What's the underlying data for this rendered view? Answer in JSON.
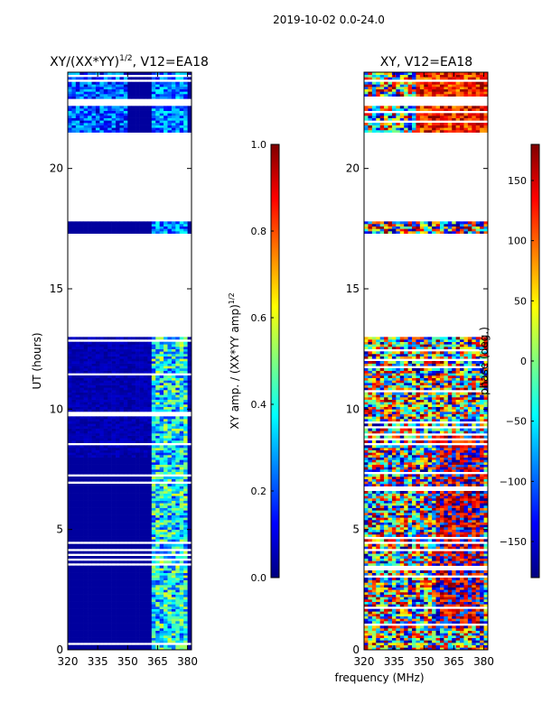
{
  "figure": {
    "suptitle": "2019-10-02 0.0-24.0"
  },
  "colors": {
    "jet": [
      "#00007f",
      "#0000ff",
      "#007fff",
      "#00ffff",
      "#7fff7f",
      "#ffff00",
      "#ff7f00",
      "#ff0000",
      "#7f0000"
    ]
  },
  "chart_data": [
    {
      "type": "heatmap",
      "title_main": "XY/(XX*YY)",
      "title_sup": "1/2",
      "title_tail": ", V12=EA18",
      "xlabel": "frequency (MHz)",
      "ylabel": "UT (hours)",
      "xlim": [
        320,
        382
      ],
      "ylim": [
        0,
        24
      ],
      "xticks": [
        320,
        335,
        350,
        365,
        380
      ],
      "yticks": [
        0,
        5,
        10,
        15,
        20
      ],
      "colorbar": {
        "label_main": "XY amp. / (XX*YY amp)",
        "label_sup": "1/2",
        "range": [
          0.0,
          1.0
        ],
        "ticks": [
          "0.0",
          "0.2",
          "0.4",
          "0.6",
          "0.8",
          "1.0"
        ]
      },
      "data_gaps_hours": [
        [
          13.0,
          17.3
        ],
        [
          17.8,
          21.5
        ],
        [
          22.6,
          22.9
        ],
        [
          23.6,
          23.7
        ]
      ],
      "note": "Mostly low amplitude (~0.05); elevated amplitude (~0.3-0.6) in channels near 363-380 MHz"
    },
    {
      "type": "heatmap",
      "title_main": "XY, V12=EA18",
      "xlabel": "frequency (MHz)",
      "ylabel": "",
      "xlim": [
        320,
        382
      ],
      "ylim": [
        0,
        24
      ],
      "xticks": [
        320,
        335,
        350,
        365,
        380
      ],
      "yticks": [
        0,
        5,
        10,
        15,
        20
      ],
      "colorbar": {
        "label": "phase (deg.)",
        "range": [
          -180,
          180
        ],
        "ticks": [
          "150",
          "100",
          "50",
          "0",
          "−50",
          "−100",
          "−150"
        ]
      },
      "data_gaps_hours": [
        [
          13.0,
          17.3
        ],
        [
          17.8,
          21.5
        ],
        [
          22.6,
          22.9
        ],
        [
          23.6,
          23.7
        ]
      ],
      "note": "Noisy phase across band; coherent structure near 355-380 MHz"
    }
  ]
}
